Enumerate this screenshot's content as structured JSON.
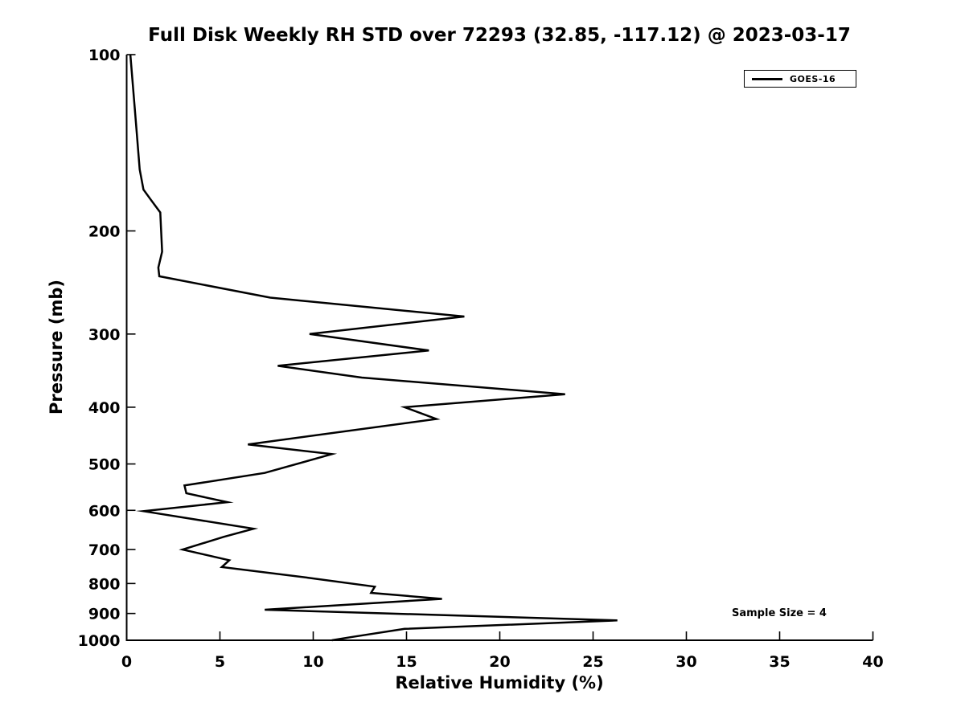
{
  "chart_data": {
    "type": "line",
    "title": "Full Disk Weekly RH STD over 72293 (32.85, -117.12) @ 2023-03-17",
    "xlabel": "Relative Humidity (%)",
    "ylabel": "Pressure (mb)",
    "xlim": [
      0,
      40
    ],
    "ylim": [
      100,
      1000
    ],
    "yscale": "log",
    "y_inverted": true,
    "x_ticks": [
      0,
      5,
      10,
      15,
      20,
      25,
      30,
      35,
      40
    ],
    "y_ticks": [
      100,
      200,
      300,
      400,
      500,
      600,
      700,
      800,
      900,
      1000
    ],
    "grid": false,
    "legend_position": "upper right",
    "line_width": 2.5,
    "series": [
      {
        "name": "GOES-16",
        "color": "#000000",
        "points_rh_pressure": [
          [
            0.2,
            100
          ],
          [
            0.5,
            131
          ],
          [
            0.7,
            157
          ],
          [
            0.9,
            170
          ],
          [
            1.3,
            177
          ],
          [
            1.8,
            186
          ],
          [
            1.9,
            217
          ],
          [
            1.7,
            231
          ],
          [
            1.75,
            239
          ],
          [
            7.7,
            260
          ],
          [
            18.1,
            280
          ],
          [
            9.8,
            300
          ],
          [
            16.2,
            320
          ],
          [
            8.1,
            340
          ],
          [
            12.6,
            356
          ],
          [
            23.5,
            380
          ],
          [
            14.9,
            400
          ],
          [
            16.6,
            419
          ],
          [
            6.5,
            463
          ],
          [
            11.0,
            481
          ],
          [
            7.4,
            518
          ],
          [
            3.1,
            544
          ],
          [
            3.2,
            561
          ],
          [
            5.4,
            581
          ],
          [
            0.9,
            602
          ],
          [
            6.8,
            645
          ],
          [
            5.2,
            666
          ],
          [
            3.0,
            700
          ],
          [
            5.5,
            730
          ],
          [
            5.1,
            750
          ],
          [
            9.7,
            782
          ],
          [
            13.3,
            810
          ],
          [
            13.1,
            830
          ],
          [
            16.9,
            850
          ],
          [
            7.4,
            887
          ],
          [
            26.3,
            925
          ],
          [
            14.9,
            956
          ],
          [
            12.0,
            988
          ],
          [
            11.0,
            1000
          ]
        ]
      }
    ],
    "annotations": [
      {
        "text": "Sample Size = 4"
      }
    ]
  }
}
